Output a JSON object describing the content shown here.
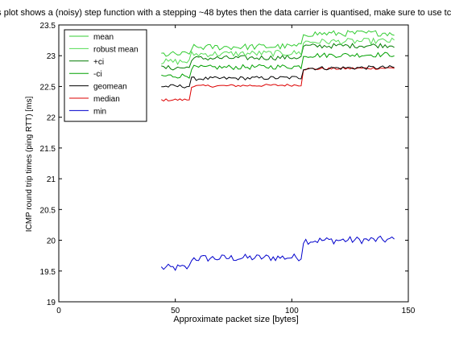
{
  "chart_data": {
    "type": "line",
    "title": "If this plot shows a (noisy) step function with a stepping ~48 bytes then the data carrier is quantised, make sure to use tc-stab",
    "xlabel": "Approximate packet size [bytes]",
    "ylabel": "ICMP round trip times (ping RTT) [ms]",
    "xlim": [
      0,
      150
    ],
    "ylim": [
      19,
      23.5
    ],
    "x_ticks": [
      0,
      50,
      100,
      150
    ],
    "y_ticks": [
      19,
      19.5,
      20,
      20.5,
      21,
      21.5,
      22,
      22.5,
      23,
      23.5
    ],
    "grid": false,
    "legend_position": "top-left",
    "x_range": [
      44,
      144
    ],
    "step_x": [
      57,
      105
    ],
    "series": [
      {
        "name": "mean",
        "color": "#33cc33",
        "levels": [
          23.02,
          23.13,
          23.33
        ],
        "noise": 0.05
      },
      {
        "name": "robust mean",
        "color": "#55dd55",
        "levels": [
          22.9,
          23.02,
          23.2
        ],
        "noise": 0.05
      },
      {
        "name": "+ci",
        "color": "#007a00",
        "levels": [
          22.8,
          22.95,
          23.13
        ],
        "noise": 0.04
      },
      {
        "name": "-ci",
        "color": "#00a000",
        "levels": [
          22.67,
          22.8,
          22.98
        ],
        "noise": 0.04
      },
      {
        "name": "geomean",
        "color": "#000000",
        "levels": [
          22.5,
          22.62,
          22.77
        ],
        "noise": 0.03
      },
      {
        "name": "median",
        "color": "#dd0000",
        "levels": [
          22.28,
          22.5,
          22.76
        ],
        "noise": 0.02
      },
      {
        "name": "min",
        "color": "#0000cc",
        "levels": [
          19.55,
          19.7,
          19.97
        ],
        "noise": 0.06
      }
    ]
  }
}
